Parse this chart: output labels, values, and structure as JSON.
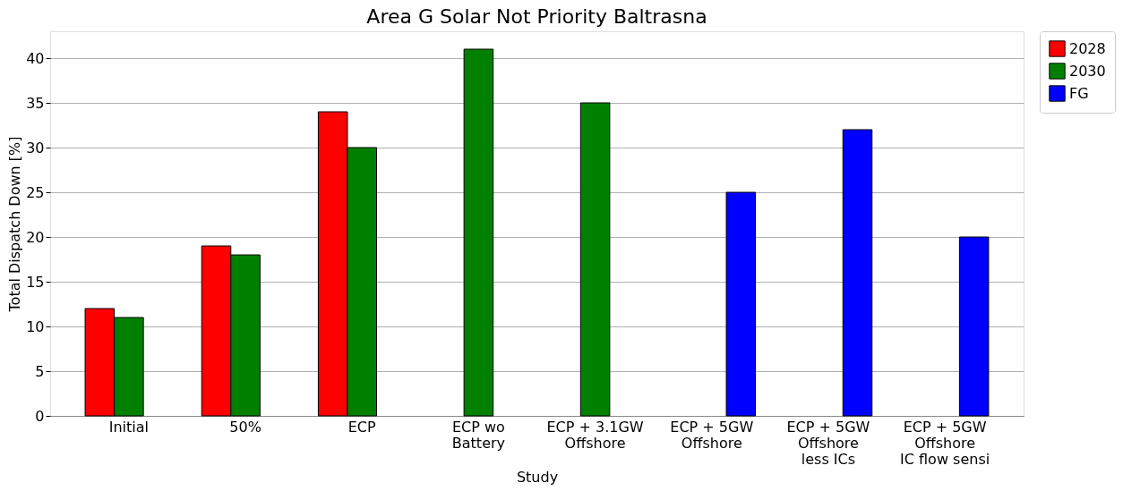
{
  "chart_data": {
    "type": "bar",
    "title": "Area G Solar Not Priority Baltrasna",
    "xlabel": "Study",
    "ylabel": "Total Dispatch Down [%]",
    "categories": [
      "Initial",
      "50%",
      "ECP",
      "ECP wo\nBattery",
      "ECP + 3.1GW\nOffshore",
      "ECP + 5GW\nOffshore",
      "ECP + 5GW\nOffshore\nless ICs",
      "ECP + 5GW\nOffshore\nIC flow sensi"
    ],
    "series": [
      {
        "name": "2028",
        "color": "#ff0000",
        "values": [
          12,
          19,
          34,
          null,
          null,
          null,
          null,
          null
        ]
      },
      {
        "name": "2030",
        "color": "#008000",
        "values": [
          11,
          18,
          30,
          41,
          35,
          null,
          null,
          null
        ]
      },
      {
        "name": "FG",
        "color": "#0000ff",
        "values": [
          null,
          null,
          null,
          null,
          null,
          25,
          32,
          20
        ]
      }
    ],
    "ylim": [
      0,
      43
    ],
    "yticks": [
      0,
      5,
      10,
      15,
      20,
      25,
      30,
      35,
      40
    ],
    "grid": "y",
    "legend": "right"
  }
}
